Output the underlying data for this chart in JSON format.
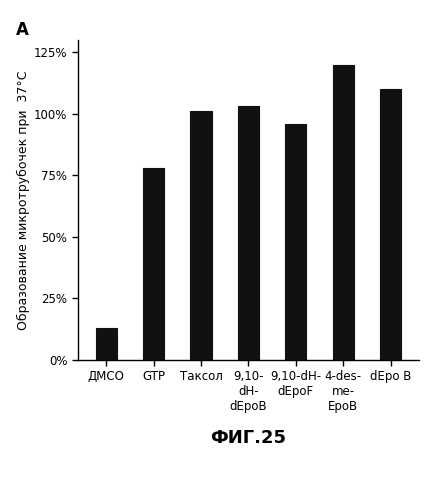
{
  "categories": [
    "ДМСО",
    "GTP",
    "Таксол",
    "9,10-\ndH-\ndEpoB",
    "9,10-dH-\ndEpoF",
    "4-des-\nme-\nEpoB",
    "dEpo B"
  ],
  "values": [
    13,
    78,
    101,
    103,
    96,
    120,
    110
  ],
  "bar_color": "#111111",
  "ylabel": "Образование микротрубочек при  37°С",
  "xlabel": "ФИГ.25",
  "panel_label": "A",
  "ylim": [
    0,
    130
  ],
  "yticks": [
    0,
    25,
    50,
    75,
    100,
    125
  ],
  "yticklabels": [
    "0%",
    "25%",
    "50%",
    "75%",
    "100%",
    "125%"
  ],
  "background_color": "#ffffff",
  "ylabel_fontsize": 9,
  "xlabel_fontsize": 13,
  "tick_fontsize": 8.5,
  "panel_fontsize": 12,
  "bar_width": 0.45
}
